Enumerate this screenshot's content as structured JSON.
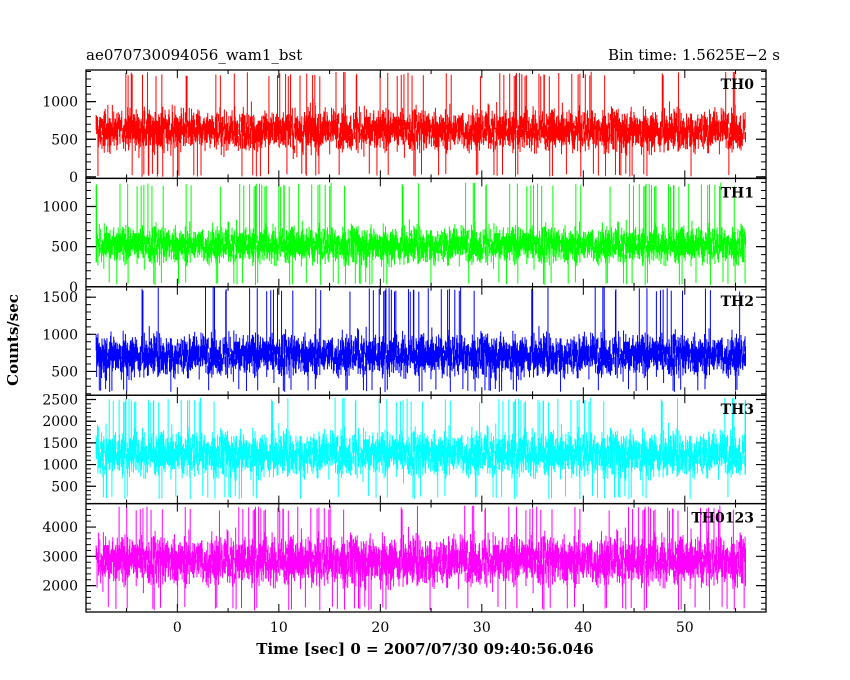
{
  "chart_data": {
    "type": "line",
    "title_left": "ae070730094056_wam1_bst",
    "title_right": "Bin time: 1.5625E−2 s",
    "xlabel": "Time [sec] 0 = 2007/07/30 09:40:56.046",
    "ylabel": "Counts/sec",
    "xlim": [
      -9,
      58
    ],
    "data_x_range": [
      -8,
      56
    ],
    "x_ticks": [
      0,
      10,
      20,
      30,
      40,
      50
    ],
    "grid": false,
    "panels": [
      {
        "name": "TH0",
        "color": "#ff0000",
        "ylim": [
          -20,
          1420
        ],
        "y_ticks": [
          0,
          500,
          1000
        ],
        "mean": 620,
        "spread": 430,
        "y_min": 0,
        "y_max": 1400
      },
      {
        "name": "TH1",
        "color": "#00ff00",
        "ylim": [
          0,
          1350
        ],
        "y_ticks": [
          0,
          500,
          1000
        ],
        "mean": 520,
        "spread": 360,
        "y_min": 20,
        "y_max": 1300
      },
      {
        "name": "TH2",
        "color": "#0000ff",
        "ylim": [
          180,
          1640
        ],
        "y_ticks": [
          500,
          1000,
          1500
        ],
        "mean": 720,
        "spread": 440,
        "y_min": 220,
        "y_max": 1640
      },
      {
        "name": "TH3",
        "color": "#00ffff",
        "ylim": [
          100,
          2600
        ],
        "y_ticks": [
          500,
          1000,
          1500,
          2000,
          2500
        ],
        "mean": 1250,
        "spread": 800,
        "y_min": 200,
        "y_max": 2550
      },
      {
        "name": "TH0123",
        "color": "#ff00ff",
        "ylim": [
          1100,
          4800
        ],
        "y_ticks": [
          2000,
          3000,
          4000
        ],
        "mean": 2850,
        "spread": 1300,
        "y_min": 1150,
        "y_max": 4750
      }
    ]
  }
}
